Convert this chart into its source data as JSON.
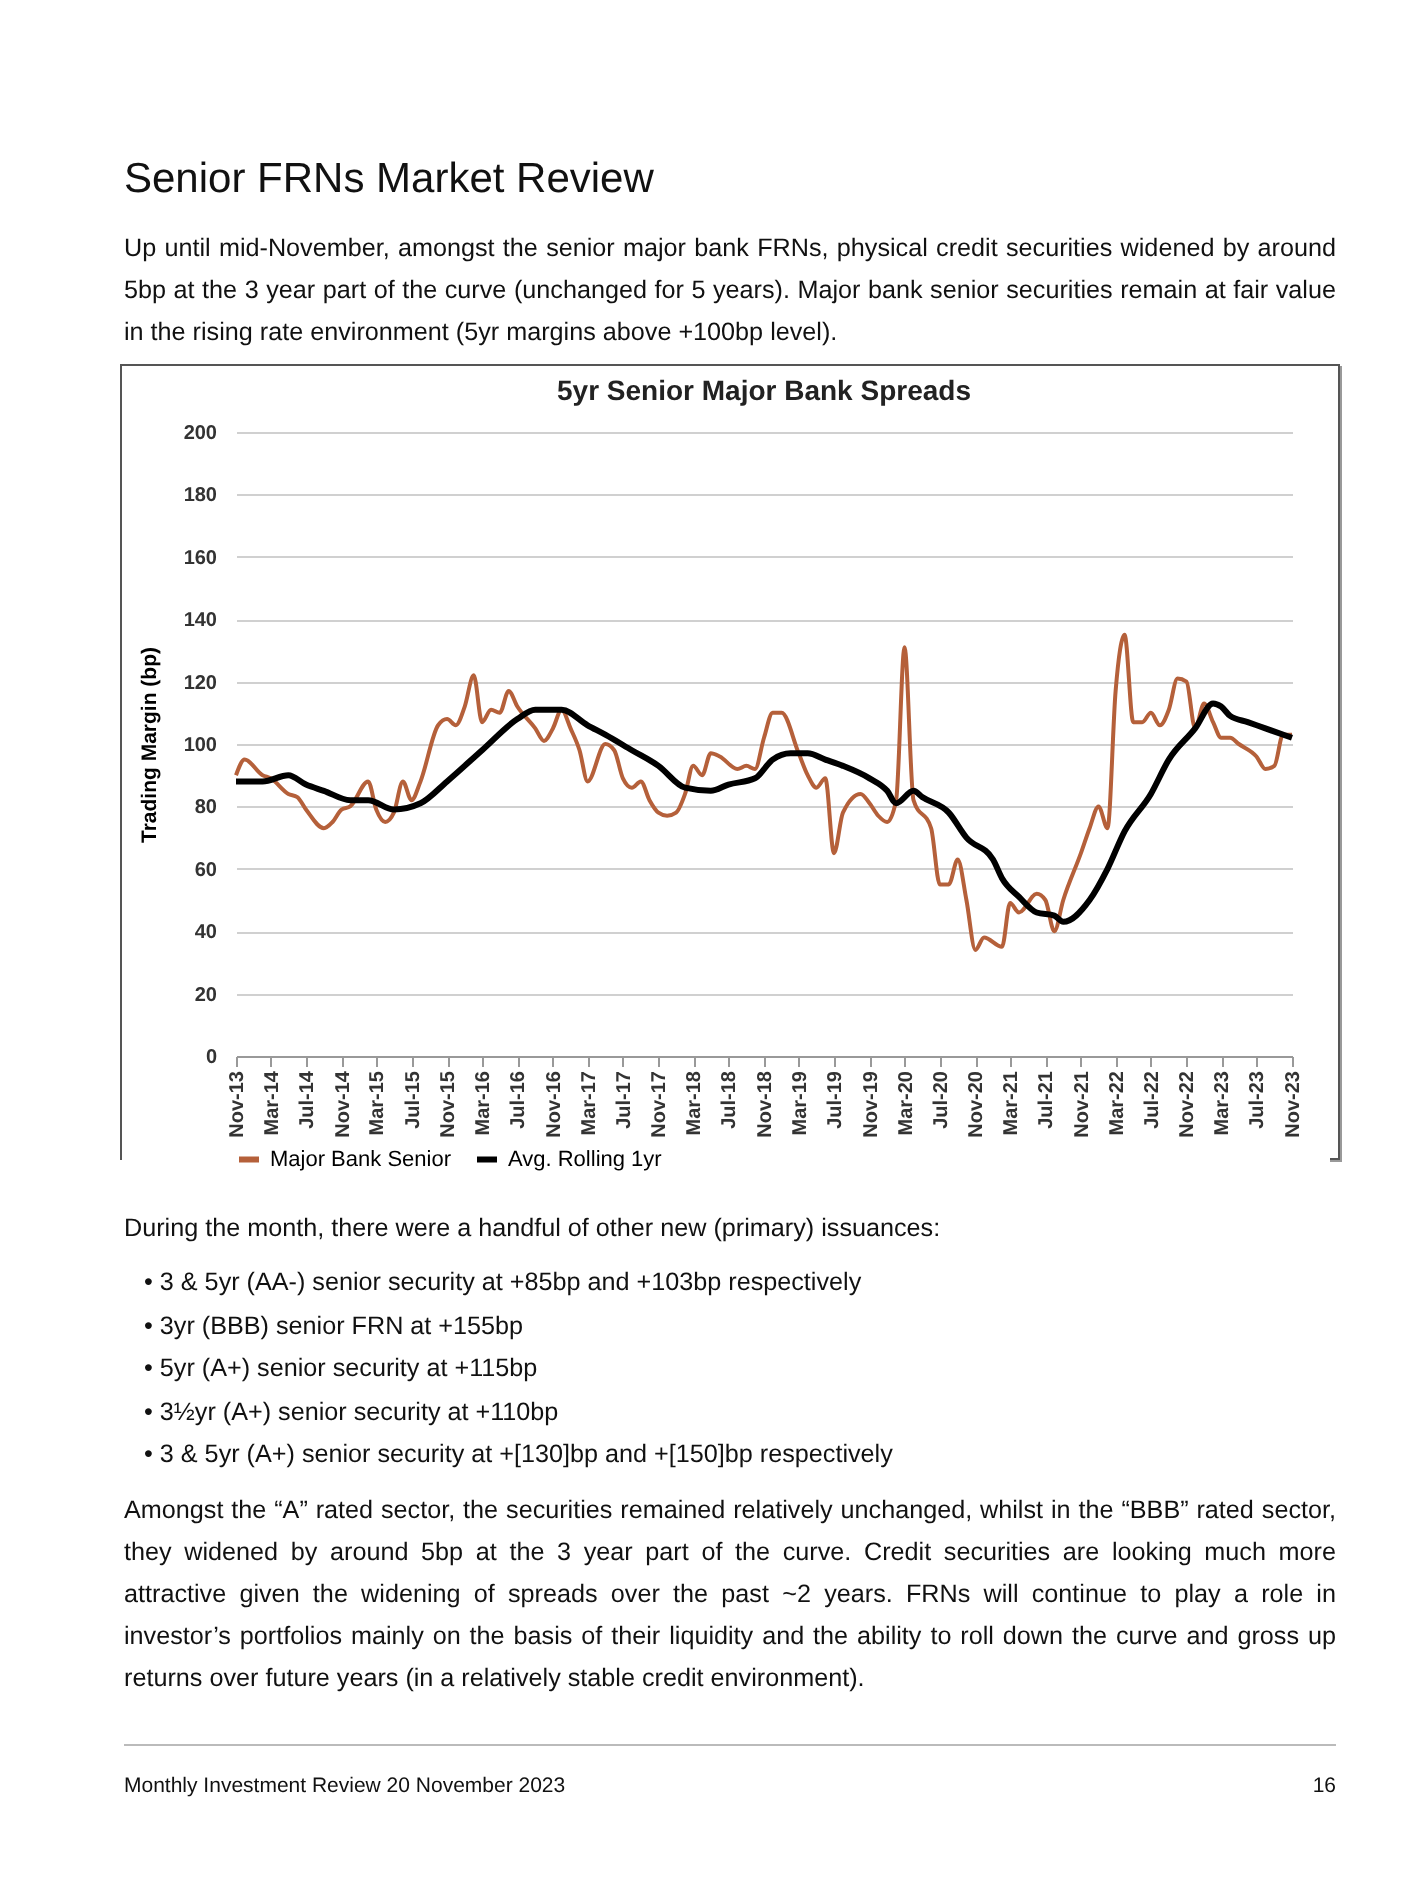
{
  "chart_data": {
    "type": "line",
    "title": "5yr Senior Major Bank Spreads",
    "ylabel": "Trading Margin (bp)",
    "annotations": [
      "Senior FRNs Market Review",
      "Up until mid-November, amongst the senior major bank FRNs, physical credit securities widened by around 5bp at the 3 year part of the curve (unchanged for 5 years). Major bank senior securities remain at fair value in the rising rate environment (5yr margins above +100bp level).",
      "During the month, there were a handful of other new (primary) issuances:",
      "•  3 & 5yr (AA-) senior security at +85bp and +103bp respectively",
      "•  3yr (BBB) senior FRN at +155bp",
      "•  5yr (A+) senior security at +115bp",
      "•  3½yr (A+) senior security at +110bp",
      "•  3 & 5yr (A+) senior security at +[130]bp and +[150]bp respectively",
      "Amongst the “A” rated sector, the securities remained relatively unchanged, whilst in the “BBB” rated sector, they widened by around 5bp at the 3 year part of the curve. Credit securities are looking much more attractive given the widening of spreads over the past ~2 years. FRNs will continue to play a role in investor’s portfolios mainly on the basis of their liquidity and the ability to roll down the curve and gross up returns over future years (in a relatively stable credit environment).",
      "Monthly Investment Review 20 November 2023",
      "16"
    ],
    "xlim": [
      "2013-11",
      "2023-11"
    ],
    "xticks": [
      {
        "value": "2013-11",
        "label": "Nov-13"
      },
      {
        "value": "2014-03",
        "label": "Mar-14"
      },
      {
        "value": "2014-07",
        "label": "Jul-14"
      },
      {
        "value": "2014-11",
        "label": "Nov-14"
      },
      {
        "value": "2015-03",
        "label": "Mar-15"
      },
      {
        "value": "2015-07",
        "label": "Jul-15"
      },
      {
        "value": "2015-11",
        "label": "Nov-15"
      },
      {
        "value": "2016-03",
        "label": "Mar-16"
      },
      {
        "value": "2016-07",
        "label": "Jul-16"
      },
      {
        "value": "2016-11",
        "label": "Nov-16"
      },
      {
        "value": "2017-03",
        "label": "Mar-17"
      },
      {
        "value": "2017-07",
        "label": "Jul-17"
      },
      {
        "value": "2017-11",
        "label": "Nov-17"
      },
      {
        "value": "2018-03",
        "label": "Mar-18"
      },
      {
        "value": "2018-07",
        "label": "Jul-18"
      },
      {
        "value": "2018-11",
        "label": "Nov-18"
      },
      {
        "value": "2019-03",
        "label": "Mar-19"
      },
      {
        "value": "2019-07",
        "label": "Jul-19"
      },
      {
        "value": "2019-11",
        "label": "Nov-19"
      },
      {
        "value": "2020-03",
        "label": "Mar-20"
      },
      {
        "value": "2020-07",
        "label": "Jul-20"
      },
      {
        "value": "2020-11",
        "label": "Nov-20"
      },
      {
        "value": "2021-03",
        "label": "Mar-21"
      },
      {
        "value": "2021-07",
        "label": "Jul-21"
      },
      {
        "value": "2021-11",
        "label": "Nov-21"
      },
      {
        "value": "2022-03",
        "label": "Mar-22"
      },
      {
        "value": "2022-07",
        "label": "Jul-22"
      },
      {
        "value": "2022-11",
        "label": "Nov-22"
      },
      {
        "value": "2023-03",
        "label": "Mar-23"
      },
      {
        "value": "2023-07",
        "label": "Jul-23"
      },
      {
        "value": "2023-11",
        "label": "Nov-23"
      }
    ],
    "ylim": [
      0,
      200
    ],
    "yticks": [
      0,
      20,
      40,
      60,
      80,
      100,
      120,
      140,
      160,
      180,
      200
    ],
    "grid": "y",
    "legend": "bottom",
    "line_style": "solid",
    "marker": "none",
    "series": [
      {
        "name": "Major Bank Senior",
        "color": "#b5603a",
        "x": [
          "2013-11",
          "2013-12",
          "2014-02",
          "2014-03",
          "2014-05",
          "2014-06",
          "2014-07",
          "2014-09",
          "2014-10",
          "2014-11",
          "2014-12",
          "2015-02",
          "2015-03",
          "2015-04",
          "2015-05",
          "2015-06",
          "2015-07",
          "2015-08",
          "2015-10",
          "2015-11",
          "2015-12",
          "2016-01",
          "2016-02",
          "2016-03",
          "2016-04",
          "2016-05",
          "2016-06",
          "2016-07",
          "2016-09",
          "2016-10",
          "2016-11",
          "2016-12",
          "2017-01",
          "2017-02",
          "2017-03",
          "2017-05",
          "2017-06",
          "2017-07",
          "2017-08",
          "2017-09",
          "2017-10",
          "2017-11",
          "2017-12",
          "2018-01",
          "2018-02",
          "2018-03",
          "2018-04",
          "2018-05",
          "2018-06",
          "2018-08",
          "2018-09",
          "2018-10",
          "2018-11",
          "2018-12",
          "2019-01",
          "2019-03",
          "2019-04",
          "2019-05",
          "2019-06",
          "2019-07",
          "2019-08",
          "2019-10",
          "2019-11",
          "2019-12",
          "2020-01",
          "2020-02",
          "2020-03",
          "2020-04",
          "2020-06",
          "2020-07",
          "2020-08",
          "2020-09",
          "2020-10",
          "2020-11",
          "2020-12",
          "2021-02",
          "2021-03",
          "2021-04",
          "2021-06",
          "2021-07",
          "2021-08",
          "2021-09",
          "2021-11",
          "2021-12",
          "2022-01",
          "2022-02",
          "2022-03",
          "2022-04",
          "2022-05",
          "2022-06",
          "2022-07",
          "2022-08",
          "2022-09",
          "2022-10",
          "2022-11",
          "2022-12",
          "2023-01",
          "2023-02",
          "2023-03",
          "2023-04",
          "2023-05",
          "2023-07",
          "2023-08",
          "2023-09",
          "2023-10",
          "2023-11"
        ],
        "values": [
          90,
          95,
          90,
          89,
          84,
          83,
          79,
          73,
          75,
          79,
          80,
          88,
          79,
          75,
          78,
          88,
          82,
          88,
          106,
          108,
          106,
          112,
          122,
          107,
          111,
          110,
          117,
          112,
          105,
          101,
          105,
          111,
          105,
          98,
          88,
          100,
          98,
          89,
          86,
          88,
          82,
          78,
          77,
          78,
          84,
          93,
          90,
          97,
          96,
          92,
          93,
          92,
          102,
          110,
          110,
          97,
          90,
          86,
          89,
          65,
          78,
          84,
          81,
          77,
          75,
          82,
          131,
          82,
          73,
          55,
          55,
          63,
          50,
          34,
          38,
          35,
          49,
          46,
          52,
          50,
          40,
          50,
          65,
          73,
          80,
          73,
          117,
          135,
          107,
          107,
          110,
          106,
          111,
          121,
          120,
          105,
          113,
          107,
          102,
          102,
          100,
          96,
          92,
          93,
          103,
          103
        ]
      },
      {
        "name": "Avg. Rolling 1yr",
        "color": "#000000",
        "x": [
          "2013-11",
          "2014-02",
          "2014-05",
          "2014-07",
          "2014-09",
          "2014-12",
          "2015-02",
          "2015-05",
          "2015-08",
          "2015-11",
          "2016-03",
          "2016-07",
          "2016-09",
          "2016-11",
          "2016-12",
          "2017-03",
          "2017-05",
          "2017-08",
          "2017-11",
          "2018-02",
          "2018-05",
          "2018-07",
          "2018-10",
          "2018-12",
          "2019-02",
          "2019-04",
          "2019-06",
          "2019-08",
          "2019-11",
          "2020-01",
          "2020-02",
          "2020-04",
          "2020-05",
          "2020-08",
          "2020-10",
          "2021-01",
          "2021-02",
          "2021-04",
          "2021-06",
          "2021-08",
          "2021-09",
          "2021-12",
          "2022-02",
          "2022-04",
          "2022-07",
          "2022-09",
          "2022-12",
          "2023-02",
          "2023-03",
          "2023-04",
          "2023-06",
          "2023-08",
          "2023-11"
        ],
        "values": [
          88,
          88,
          90,
          87,
          85,
          82,
          82,
          79,
          81,
          88,
          98,
          108,
          111,
          111,
          111,
          106,
          103,
          98,
          93,
          86,
          85,
          87,
          89,
          95,
          97,
          97,
          95,
          93,
          89,
          85,
          81,
          85,
          83,
          78,
          70,
          63,
          57,
          51,
          46,
          45,
          43,
          50,
          60,
          72,
          84,
          95,
          105,
          113,
          112,
          109,
          107,
          105,
          102
        ]
      }
    ]
  }
}
